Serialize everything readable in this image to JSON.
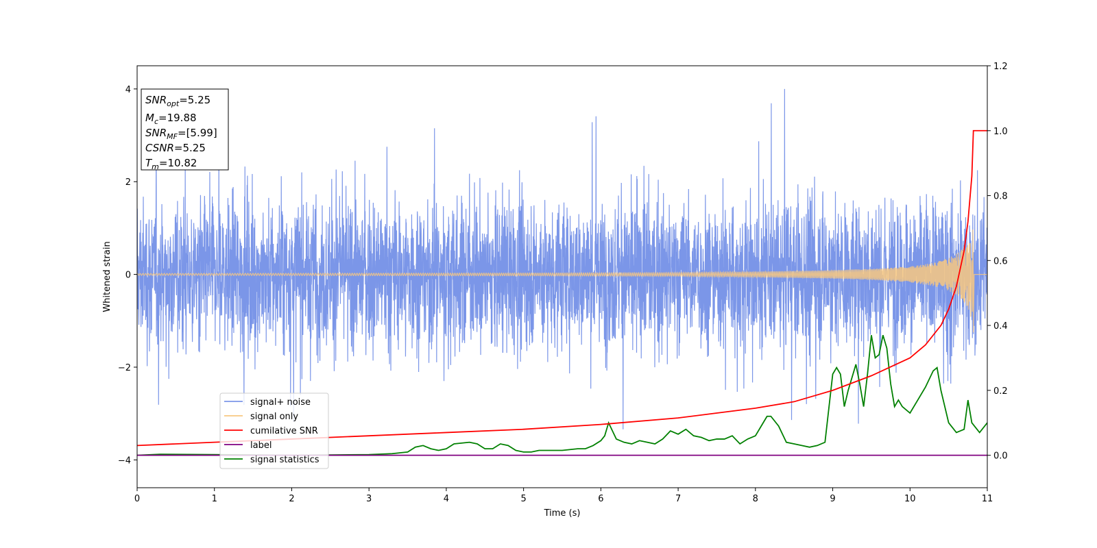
{
  "chart_data": {
    "type": "line",
    "xlabel": "Time (s)",
    "ylabel": "Whitened strain",
    "xlim": [
      0,
      11
    ],
    "ylim_left": [
      -4.6,
      4.5
    ],
    "ylim_right": [
      -0.1,
      1.2
    ],
    "grid": false,
    "x_ticks": [
      "0",
      "1",
      "2",
      "3",
      "4",
      "5",
      "6",
      "7",
      "8",
      "9",
      "10",
      "11"
    ],
    "y_ticks_left": [
      "−4",
      "−2",
      "0",
      "2",
      "4"
    ],
    "y_ticks_right": [
      "0.0",
      "0.2",
      "0.4",
      "0.6",
      "0.8",
      "1.0",
      "1.2"
    ],
    "legend": {
      "placement": "lower-left",
      "entries": [
        {
          "label": "signal+ noise",
          "color": "#7b96e8"
        },
        {
          "label": "signal only",
          "color": "#f8c880"
        },
        {
          "label": "cumilative SNR",
          "color": "#ff0000"
        },
        {
          "label": "label",
          "color": "#800080"
        },
        {
          "label": "signal statistics",
          "color": "#008000"
        }
      ]
    },
    "annotation": {
      "placement": "top-left",
      "lines": [
        {
          "sym": "SNR",
          "sub": "opt",
          "rest": "=5.25"
        },
        {
          "sym": "M",
          "sub": "c",
          "rest": "=19.88"
        },
        {
          "sym": "SNR",
          "sub": "MF",
          "rest": "=[5.99]"
        },
        {
          "sym": "CSNR",
          "sub": "",
          "rest": "=5.25"
        },
        {
          "sym": "T",
          "sub": "m",
          "rest": "=10.82"
        }
      ]
    },
    "series": [
      {
        "name": "signal+ noise",
        "axis": "left",
        "color": "#7b96e8",
        "description_range": [
          -4.15,
          4.0
        ],
        "typical_amplitude": 2.2
      },
      {
        "name": "signal only",
        "axis": "left",
        "color": "#f8c880",
        "envelope": {
          "x": [
            0,
            5,
            7,
            8,
            9,
            9.5,
            10,
            10.3,
            10.5,
            10.65,
            10.75,
            10.82
          ],
          "amp": [
            0.02,
            0.03,
            0.04,
            0.06,
            0.09,
            0.12,
            0.17,
            0.25,
            0.35,
            0.5,
            0.72,
            1.1
          ]
        },
        "merger_time": 10.82,
        "ringdown_min": -1.25
      },
      {
        "name": "cumilative SNR",
        "axis": "right",
        "color": "#ff0000",
        "x": [
          0,
          1,
          2,
          3,
          4,
          5,
          6,
          7,
          7.5,
          8,
          8.5,
          9,
          9.5,
          10,
          10.2,
          10.4,
          10.5,
          10.6,
          10.7,
          10.75,
          10.8,
          10.82,
          11
        ],
        "values": [
          0.03,
          0.04,
          0.05,
          0.06,
          0.07,
          0.08,
          0.095,
          0.115,
          0.13,
          0.145,
          0.165,
          0.2,
          0.245,
          0.3,
          0.34,
          0.4,
          0.45,
          0.52,
          0.63,
          0.72,
          0.86,
          1.0,
          1.0
        ]
      },
      {
        "name": "label",
        "axis": "right",
        "color": "#800080",
        "x": [
          0,
          11
        ],
        "values": [
          0,
          0
        ]
      },
      {
        "name": "signal statistics",
        "axis": "right",
        "color": "#008000",
        "x": [
          0,
          0.3,
          1,
          2,
          3,
          3.3,
          3.5,
          3.6,
          3.7,
          3.8,
          3.9,
          4,
          4.1,
          4.3,
          4.4,
          4.5,
          4.6,
          4.7,
          4.8,
          4.9,
          5,
          5.1,
          5.2,
          5.5,
          5.7,
          5.8,
          5.9,
          6,
          6.05,
          6.1,
          6.2,
          6.3,
          6.4,
          6.5,
          6.6,
          6.7,
          6.8,
          6.9,
          7,
          7.1,
          7.2,
          7.3,
          7.4,
          7.5,
          7.6,
          7.7,
          7.8,
          7.9,
          8,
          8.1,
          8.15,
          8.2,
          8.3,
          8.4,
          8.5,
          8.6,
          8.7,
          8.8,
          8.9,
          9,
          9.05,
          9.1,
          9.15,
          9.2,
          9.3,
          9.35,
          9.4,
          9.45,
          9.5,
          9.55,
          9.6,
          9.65,
          9.7,
          9.75,
          9.8,
          9.85,
          9.9,
          10,
          10.1,
          10.2,
          10.3,
          10.35,
          10.4,
          10.5,
          10.6,
          10.7,
          10.75,
          10.8,
          10.9,
          11
        ],
        "values": [
          0.0,
          0.003,
          0.002,
          0.0,
          0.002,
          0.005,
          0.01,
          0.025,
          0.03,
          0.02,
          0.015,
          0.02,
          0.035,
          0.04,
          0.035,
          0.02,
          0.02,
          0.035,
          0.03,
          0.015,
          0.01,
          0.01,
          0.015,
          0.015,
          0.02,
          0.02,
          0.03,
          0.045,
          0.06,
          0.1,
          0.05,
          0.04,
          0.035,
          0.045,
          0.04,
          0.035,
          0.05,
          0.075,
          0.065,
          0.08,
          0.06,
          0.055,
          0.045,
          0.05,
          0.05,
          0.06,
          0.035,
          0.05,
          0.06,
          0.1,
          0.12,
          0.12,
          0.09,
          0.04,
          0.035,
          0.03,
          0.025,
          0.03,
          0.04,
          0.25,
          0.27,
          0.25,
          0.15,
          0.2,
          0.28,
          0.22,
          0.15,
          0.25,
          0.37,
          0.3,
          0.31,
          0.37,
          0.33,
          0.22,
          0.15,
          0.17,
          0.15,
          0.13,
          0.17,
          0.21,
          0.26,
          0.27,
          0.2,
          0.1,
          0.07,
          0.08,
          0.17,
          0.1,
          0.07,
          0.1
        ]
      }
    ]
  }
}
